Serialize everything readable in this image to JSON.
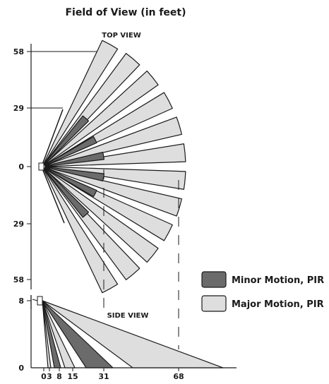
{
  "title": "Field of View (in feet)",
  "top_view": {
    "label": "TOP VIEW",
    "y_ticks": [
      "58",
      "29",
      "0",
      "29",
      "58"
    ],
    "major_fan_count": 12,
    "minor_fan_count": 6
  },
  "side_view": {
    "label": "SIDE VIEW",
    "y_ticks": [
      "8",
      "0"
    ],
    "x_ticks": [
      "0",
      "3",
      "8",
      "15",
      "31",
      "68"
    ]
  },
  "legend": {
    "items": [
      {
        "label": "Minor Motion, PIR",
        "color": "#6b6b6b"
      },
      {
        "label": "Major Motion, PIR",
        "color": "#dedede"
      }
    ]
  },
  "colors": {
    "major_fill": "#dedede",
    "minor_fill": "#6b6b6b",
    "stroke": "#1a1a1a"
  }
}
